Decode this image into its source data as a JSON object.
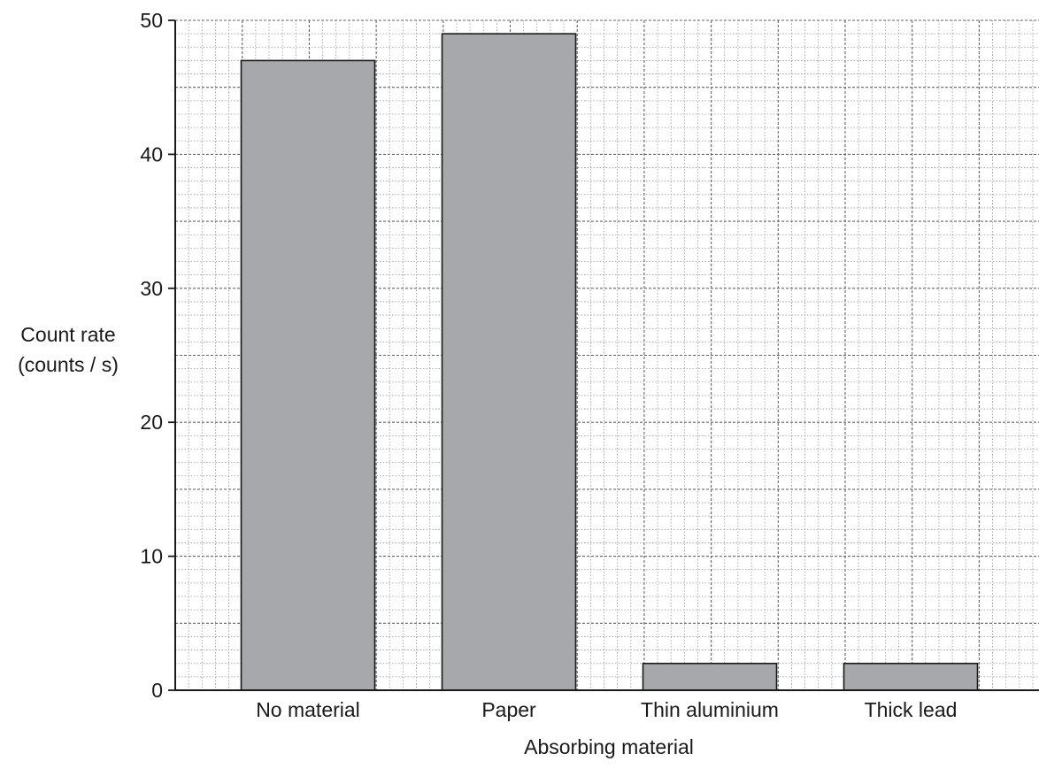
{
  "chart_data": {
    "type": "bar",
    "categories": [
      "No material",
      "Paper",
      "Thin aluminium",
      "Thick lead"
    ],
    "values": [
      47,
      49,
      2,
      2
    ],
    "xlabel": "Absorbing material",
    "ylabel_line1": "Count rate",
    "ylabel_line2": "(counts / s)",
    "ylim": [
      0,
      50
    ],
    "yticks": [
      0,
      10,
      20,
      30,
      40,
      50
    ],
    "grid": true,
    "grid_style": "dotted graph paper",
    "bar_color": "#a7a8ab",
    "bar_edge_color": "#1a1a1a"
  }
}
